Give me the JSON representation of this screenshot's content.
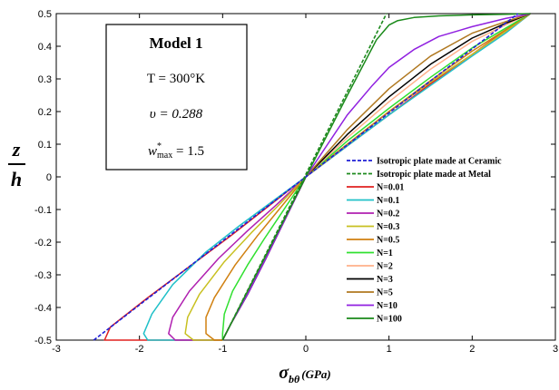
{
  "chart_data": {
    "type": "line",
    "xlabel_main": "σ",
    "xlabel_sub": "bθ",
    "xlabel_unit": "(GPa)",
    "ylabel_num": "z",
    "ylabel_den": "h",
    "xlim": [
      -3,
      3
    ],
    "ylim": [
      -0.5,
      0.5
    ],
    "xticks": [
      -3,
      -2,
      -1,
      0,
      1,
      2,
      3
    ],
    "yticks": [
      -0.5,
      -0.4,
      -0.3,
      -0.2,
      -0.1,
      0,
      0.1,
      0.2,
      0.3,
      0.4,
      0.5
    ],
    "grid": false,
    "legend_position": "lower-right",
    "annotation": {
      "title": "Model 1",
      "line1": "T = 300°K",
      "line2": "υ = 0.288",
      "line3_base": "w",
      "line3_sup": "*",
      "line3_sub": "max",
      "line3_rest": " = 1.5"
    },
    "series": [
      {
        "name": "Isotropic plate made at Ceramic",
        "color": "#1f1fd6",
        "dash": "4,2",
        "x": [
          -2.55,
          2.55
        ],
        "y": [
          -0.5,
          0.5
        ]
      },
      {
        "name": "Isotropic plate made at Metal",
        "color": "#1e8a1e",
        "dash": "4,2",
        "x": [
          -1.0,
          0.97
        ],
        "y": [
          -0.5,
          0.5
        ]
      },
      {
        "name": "N=0.01",
        "color": "#e0201f",
        "x": [
          -1.0,
          -2.42,
          -2.35,
          -1.9,
          -1.4,
          -0.9,
          -0.5,
          0,
          0.5,
          1.0,
          1.5,
          2.0,
          2.35,
          2.7
        ],
        "y": [
          -0.5,
          -0.5,
          -0.46,
          -0.37,
          -0.275,
          -0.18,
          -0.1,
          0,
          0.095,
          0.19,
          0.285,
          0.375,
          0.44,
          0.5
        ]
      },
      {
        "name": "N=0.1",
        "color": "#20c0c8",
        "x": [
          -1.0,
          -1.9,
          -1.95,
          -1.85,
          -1.6,
          -1.2,
          -0.8,
          -0.4,
          0,
          0.5,
          1.0,
          1.5,
          2.0,
          2.4,
          2.7
        ],
        "y": [
          -0.5,
          -0.5,
          -0.48,
          -0.42,
          -0.33,
          -0.23,
          -0.15,
          -0.075,
          0,
          0.095,
          0.19,
          0.28,
          0.37,
          0.44,
          0.5
        ]
      },
      {
        "name": "N=0.2",
        "color": "#b020b0",
        "x": [
          -1.0,
          -1.57,
          -1.65,
          -1.6,
          -1.4,
          -1.05,
          -0.7,
          -0.35,
          0,
          0.5,
          1.0,
          1.5,
          2.0,
          2.4,
          2.7
        ],
        "y": [
          -0.5,
          -0.5,
          -0.48,
          -0.43,
          -0.35,
          -0.25,
          -0.165,
          -0.085,
          0,
          0.1,
          0.2,
          0.29,
          0.375,
          0.445,
          0.5
        ]
      },
      {
        "name": "N=0.3",
        "color": "#c8c020",
        "x": [
          -1.0,
          -1.35,
          -1.45,
          -1.42,
          -1.28,
          -0.98,
          -0.65,
          -0.32,
          0,
          0.5,
          1.0,
          1.5,
          2.0,
          2.4,
          2.7
        ],
        "y": [
          -0.5,
          -0.5,
          -0.48,
          -0.43,
          -0.36,
          -0.26,
          -0.17,
          -0.085,
          0,
          0.1,
          0.2,
          0.29,
          0.375,
          0.445,
          0.5
        ]
      },
      {
        "name": "N=0.5",
        "color": "#d08010",
        "x": [
          -1.0,
          -1.1,
          -1.2,
          -1.2,
          -1.1,
          -0.85,
          -0.58,
          -0.29,
          0,
          0.5,
          1.0,
          1.5,
          2.0,
          2.4,
          2.7
        ],
        "y": [
          -0.5,
          -0.5,
          -0.48,
          -0.43,
          -0.37,
          -0.27,
          -0.18,
          -0.09,
          0,
          0.1,
          0.2,
          0.295,
          0.385,
          0.45,
          0.5
        ]
      },
      {
        "name": "N=1",
        "color": "#30e030",
        "x": [
          -1.0,
          -1.0,
          -0.98,
          -0.88,
          -0.7,
          -0.5,
          -0.25,
          0,
          0.5,
          1.0,
          1.5,
          2.0,
          2.4,
          2.7
        ],
        "y": [
          -0.5,
          -0.48,
          -0.42,
          -0.35,
          -0.27,
          -0.19,
          -0.095,
          0,
          0.11,
          0.21,
          0.305,
          0.395,
          0.455,
          0.5
        ]
      },
      {
        "name": "N=2",
        "color": "#ffb08a",
        "x": [
          -1.0,
          -0.9,
          -0.7,
          -0.48,
          -0.24,
          0,
          0.5,
          1.0,
          1.5,
          2.0,
          2.4,
          2.7
        ],
        "y": [
          -0.5,
          -0.45,
          -0.36,
          -0.25,
          -0.125,
          0,
          0.12,
          0.23,
          0.33,
          0.415,
          0.465,
          0.5
        ]
      },
      {
        "name": "N=3",
        "color": "#000000",
        "x": [
          -1.0,
          -0.9,
          -0.7,
          -0.48,
          -0.24,
          0,
          0.5,
          1.0,
          1.5,
          2.0,
          2.4,
          2.7
        ],
        "y": [
          -0.5,
          -0.45,
          -0.36,
          -0.25,
          -0.125,
          0,
          0.13,
          0.245,
          0.345,
          0.425,
          0.47,
          0.5
        ]
      },
      {
        "name": "N=5",
        "color": "#b07820",
        "x": [
          -1.0,
          -0.9,
          -0.7,
          -0.48,
          -0.24,
          0,
          0.5,
          1.0,
          1.5,
          2.0,
          2.4,
          2.7
        ],
        "y": [
          -0.5,
          -0.45,
          -0.36,
          -0.25,
          -0.125,
          0,
          0.145,
          0.27,
          0.37,
          0.44,
          0.475,
          0.5
        ]
      },
      {
        "name": "N=10",
        "color": "#9020e0",
        "x": [
          -1.0,
          -0.9,
          -0.7,
          -0.48,
          -0.24,
          0,
          0.5,
          0.8,
          1.0,
          1.3,
          1.6,
          2.0,
          2.4,
          2.7
        ],
        "y": [
          -0.5,
          -0.45,
          -0.36,
          -0.25,
          -0.125,
          0,
          0.19,
          0.28,
          0.335,
          0.39,
          0.43,
          0.46,
          0.485,
          0.5
        ]
      },
      {
        "name": "N=100",
        "color": "#1a8a1a",
        "x": [
          -1.0,
          -0.5,
          0,
          0.5,
          0.85,
          0.95,
          1.0,
          1.1,
          1.3,
          1.6,
          2.0,
          2.4,
          2.7
        ],
        "y": [
          -0.5,
          -0.25,
          0,
          0.25,
          0.42,
          0.45,
          0.465,
          0.478,
          0.488,
          0.493,
          0.496,
          0.498,
          0.5
        ]
      }
    ]
  }
}
